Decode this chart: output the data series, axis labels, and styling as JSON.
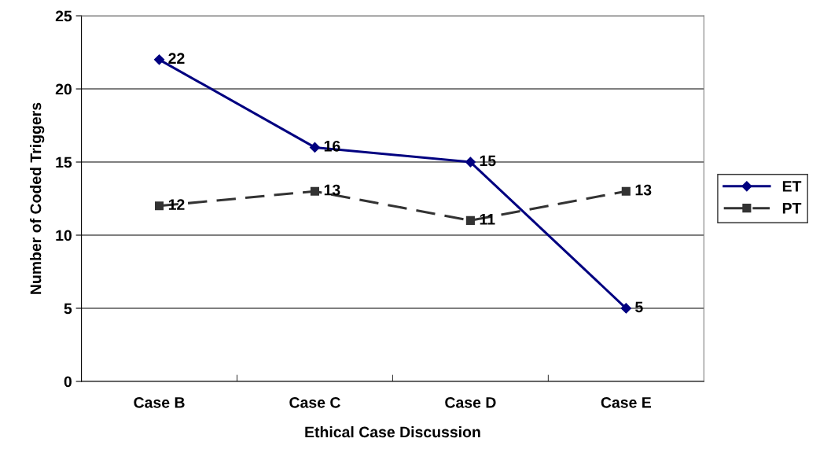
{
  "chart_data": {
    "type": "line",
    "xlabel": "Ethical Case Discussion",
    "ylabel": "Number of Coded Triggers",
    "categories": [
      "Case B",
      "Case C",
      "Case D",
      "Case E"
    ],
    "series": [
      {
        "name": "ET",
        "color": "#000080",
        "values": [
          22,
          16,
          15,
          5
        ],
        "marker": "diamond",
        "line_style": "solid"
      },
      {
        "name": "PT",
        "color": "#333333",
        "values": [
          12,
          13,
          11,
          13
        ],
        "marker": "square",
        "line_style": "dashed"
      }
    ],
    "ylim": [
      0,
      25
    ],
    "yticks": [
      0,
      5,
      10,
      15,
      20,
      25
    ],
    "grid": "y",
    "legend": "right",
    "data_labels": true
  }
}
